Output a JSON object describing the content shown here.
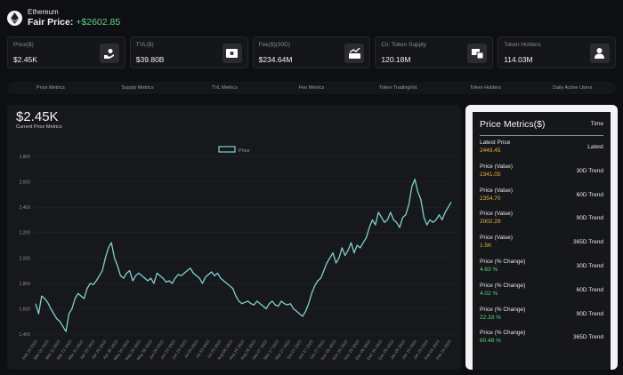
{
  "header": {
    "asset_name": "Ethereum",
    "fair_label": "Fair Price:",
    "fair_value": "+$2602.85"
  },
  "cards": [
    {
      "label": "Price($)",
      "value": "$2.45K",
      "icon": "hand-coin-icon"
    },
    {
      "label": "TVL($)",
      "value": "$39.80B",
      "icon": "banknote-icon"
    },
    {
      "label": "Fee($)(30D)",
      "value": "$234.64M",
      "icon": "fee-chart-icon"
    },
    {
      "label": "Cir. Token Supply",
      "value": "120.18M",
      "icon": "token-supply-icon"
    },
    {
      "label": "Token Holders",
      "value": "114.03M",
      "icon": "user-icon"
    }
  ],
  "tabs": [
    "Price Metrics",
    "Supply Metrics",
    "TVL Metrics",
    "Fee Metrics",
    "Token TradingVol.",
    "Token Holders",
    "Daily Active Users"
  ],
  "chart": {
    "big_price": "$2.45K",
    "subtitle": "Current Price Metrics",
    "legend": "Price"
  },
  "chart_data": {
    "type": "line",
    "series": [
      {
        "name": "Price",
        "color": "#7fd1cf"
      }
    ],
    "y_ticks": [
      "2,800",
      "2,600",
      "2,400",
      "2,200",
      "2,000",
      "1,800",
      "1,600",
      "1,400"
    ],
    "ylim": [
      1400,
      2800
    ],
    "x_ticks": [
      "Feb 19 2023",
      "Mar 01 2023",
      "Mar 11 2023",
      "Mar 21 2023",
      "Mar 31 2023",
      "Apr 10 2023",
      "Apr 20 2023",
      "Apr 30 2023",
      "May 10 2023",
      "May 20 2023",
      "May 30 2023",
      "Jun 09 2023",
      "Jun 19 2023",
      "Jun 29 2023",
      "Jul 09 2023",
      "Jul 19 2023",
      "Jul 29 2023",
      "Aug 08 2023",
      "Aug 18 2023",
      "Aug 28 2023",
      "Sep 07 2023",
      "Sep 17 2023",
      "Sep 27 2023",
      "Oct 07 2023",
      "Oct 17 2023",
      "Oct 27 2023",
      "Nov 06 2023",
      "Nov 16 2023",
      "Nov 26 2023",
      "Dec 06 2023",
      "Dec 16 2023",
      "Dec 26 2023",
      "Jan 05 2024",
      "Jan 15 2024",
      "Jan 25 2024",
      "Feb 04 2024",
      "Feb 14 2024"
    ],
    "values": [
      1640,
      1560,
      1700,
      1680,
      1650,
      1600,
      1560,
      1520,
      1500,
      1460,
      1420,
      1560,
      1600,
      1680,
      1720,
      1700,
      1680,
      1760,
      1800,
      1790,
      1820,
      1860,
      1900,
      2000,
      2080,
      2120,
      2000,
      1940,
      1860,
      1840,
      1880,
      1900,
      1820,
      1860,
      1880,
      1860,
      1840,
      1820,
      1840,
      1800,
      1880,
      1860,
      1840,
      1810,
      1820,
      1800,
      1840,
      1870,
      1860,
      1880,
      1900,
      1920,
      1880,
      1860,
      1840,
      1800,
      1850,
      1870,
      1890,
      1860,
      1880,
      1840,
      1820,
      1800,
      1780,
      1760,
      1700,
      1660,
      1640,
      1650,
      1660,
      1640,
      1630,
      1660,
      1640,
      1620,
      1600,
      1640,
      1660,
      1630,
      1620,
      1660,
      1640,
      1630,
      1640,
      1600,
      1580,
      1560,
      1540,
      1580,
      1640,
      1720,
      1780,
      1820,
      1840,
      1900,
      1960,
      2000,
      2040,
      1960,
      2000,
      2080,
      2020,
      2060,
      2120,
      2040,
      2100,
      2080,
      2120,
      2160,
      2240,
      2300,
      2260,
      2360,
      2320,
      2280,
      2300,
      2360,
      2300,
      2280,
      2240,
      2320,
      2340,
      2420,
      2560,
      2620,
      2520,
      2460,
      2320,
      2260,
      2300,
      2280,
      2300,
      2340,
      2300,
      2360,
      2400,
      2440
    ]
  },
  "metrics_panel": {
    "title": "Price Metrics($)",
    "time_header": "Time",
    "rows": [
      {
        "label": "Latest Price",
        "value": "2449.45",
        "trend": "Latest",
        "tone": "gold"
      },
      {
        "label": "Price (Value)",
        "value": "2341.05",
        "trend": "30D Trend",
        "tone": "gold"
      },
      {
        "label": "Price (Value)",
        "value": "2354.70",
        "trend": "60D Trend",
        "tone": "gold"
      },
      {
        "label": "Price (Value)",
        "value": "2002.29",
        "trend": "90D Trend",
        "tone": "gold"
      },
      {
        "label": "Price (Value)",
        "value": "1.5K",
        "trend": "365D Trend",
        "tone": "gold"
      },
      {
        "label": "Price (% Change)",
        "value": "4.63 %",
        "trend": "30D Trend",
        "tone": "green"
      },
      {
        "label": "Price (% Change)",
        "value": "4.02 %",
        "trend": "60D Trend",
        "tone": "green"
      },
      {
        "label": "Price (% Change)",
        "value": "22.33 %",
        "trend": "90D Trend",
        "tone": "green"
      },
      {
        "label": "Price (% Change)",
        "value": "60.48 %",
        "trend": "365D Trend",
        "tone": "green"
      }
    ]
  }
}
